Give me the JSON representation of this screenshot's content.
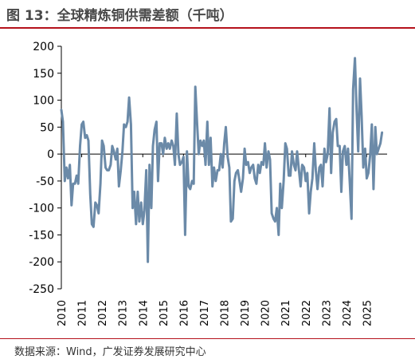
{
  "header": {
    "title": "图 13：全球精炼铜供需差额（千吨）"
  },
  "footer": {
    "source": "数据来源：Wind，广发证券发展研究中心"
  },
  "chart_data": {
    "type": "line",
    "title": "图 13：全球精炼铜供需差额（千吨）",
    "xlabel": "",
    "ylabel": "",
    "ylim": [
      -250,
      200
    ],
    "yticks": [
      200,
      150,
      100,
      50,
      0,
      -50,
      -100,
      -150,
      -200,
      -250
    ],
    "xlim": [
      2010,
      2026
    ],
    "xticks": [
      "2010",
      "2011",
      "2012",
      "2013",
      "2014",
      "2015",
      "2016",
      "2017",
      "2018",
      "2019",
      "2020",
      "2021",
      "2022",
      "2023",
      "2024",
      "2025"
    ],
    "grid": false,
    "legend": "none",
    "colors": {
      "line": "#6b8aa8",
      "axis": "#000000"
    },
    "series": [
      {
        "values": [
          [
            2010.0,
            82
          ],
          [
            2010.08,
            60
          ],
          [
            2010.17,
            -50
          ],
          [
            2010.25,
            -25
          ],
          [
            2010.33,
            -45
          ],
          [
            2010.42,
            -20
          ],
          [
            2010.5,
            -95
          ],
          [
            2010.58,
            -55
          ],
          [
            2010.67,
            -55
          ],
          [
            2010.75,
            -40
          ],
          [
            2010.83,
            -55
          ],
          [
            2010.92,
            15
          ],
          [
            2011.0,
            55
          ],
          [
            2011.08,
            60
          ],
          [
            2011.17,
            30
          ],
          [
            2011.25,
            35
          ],
          [
            2011.33,
            25
          ],
          [
            2011.42,
            -75
          ],
          [
            2011.5,
            -130
          ],
          [
            2011.58,
            -135
          ],
          [
            2011.67,
            -90
          ],
          [
            2011.75,
            -95
          ],
          [
            2011.83,
            -110
          ],
          [
            2011.92,
            -55
          ],
          [
            2012.0,
            25
          ],
          [
            2012.08,
            15
          ],
          [
            2012.17,
            -25
          ],
          [
            2012.25,
            -30
          ],
          [
            2012.33,
            -30
          ],
          [
            2012.42,
            -20
          ],
          [
            2012.5,
            15
          ],
          [
            2012.58,
            5
          ],
          [
            2012.67,
            -10
          ],
          [
            2012.75,
            10
          ],
          [
            2012.83,
            -60
          ],
          [
            2012.92,
            -30
          ],
          [
            2013.0,
            5
          ],
          [
            2013.08,
            55
          ],
          [
            2013.17,
            50
          ],
          [
            2013.25,
            60
          ],
          [
            2013.33,
            105
          ],
          [
            2013.42,
            55
          ],
          [
            2013.5,
            -100
          ],
          [
            2013.58,
            -70
          ],
          [
            2013.67,
            -130
          ],
          [
            2013.75,
            -70
          ],
          [
            2013.83,
            -125
          ],
          [
            2013.92,
            -90
          ],
          [
            2014.0,
            -130
          ],
          [
            2014.08,
            -105
          ],
          [
            2014.17,
            -30
          ],
          [
            2014.25,
            -200
          ],
          [
            2014.33,
            -20
          ],
          [
            2014.42,
            -100
          ],
          [
            2014.5,
            15
          ],
          [
            2014.58,
            45
          ],
          [
            2014.67,
            60
          ],
          [
            2014.75,
            -50
          ],
          [
            2014.83,
            20
          ],
          [
            2014.92,
            20
          ],
          [
            2015.0,
            0
          ],
          [
            2015.08,
            30
          ],
          [
            2015.17,
            10
          ],
          [
            2015.25,
            20
          ],
          [
            2015.33,
            10
          ],
          [
            2015.42,
            25
          ],
          [
            2015.5,
            15
          ],
          [
            2015.58,
            -20
          ],
          [
            2015.67,
            75
          ],
          [
            2015.75,
            0
          ],
          [
            2015.83,
            -20
          ],
          [
            2015.92,
            -15
          ],
          [
            2016.0,
            -5
          ],
          [
            2016.08,
            -150
          ],
          [
            2016.17,
            5
          ],
          [
            2016.25,
            -60
          ],
          [
            2016.33,
            -65
          ],
          [
            2016.42,
            -50
          ],
          [
            2016.5,
            -55
          ],
          [
            2016.58,
            125
          ],
          [
            2016.67,
            55
          ],
          [
            2016.75,
            0
          ],
          [
            2016.83,
            25
          ],
          [
            2016.92,
            15
          ],
          [
            2017.0,
            25
          ],
          [
            2017.08,
            -20
          ],
          [
            2017.17,
            60
          ],
          [
            2017.25,
            -20
          ],
          [
            2017.33,
            30
          ],
          [
            2017.42,
            -60
          ],
          [
            2017.5,
            -25
          ],
          [
            2017.58,
            -50
          ],
          [
            2017.67,
            -30
          ],
          [
            2017.75,
            -30
          ],
          [
            2017.83,
            0
          ],
          [
            2017.92,
            -25
          ],
          [
            2018.0,
            20
          ],
          [
            2018.08,
            50
          ],
          [
            2018.17,
            -5
          ],
          [
            2018.25,
            -25
          ],
          [
            2018.33,
            -125
          ],
          [
            2018.42,
            -120
          ],
          [
            2018.5,
            -50
          ],
          [
            2018.58,
            -35
          ],
          [
            2018.67,
            -30
          ],
          [
            2018.75,
            -50
          ],
          [
            2018.83,
            -70
          ],
          [
            2018.92,
            -45
          ],
          [
            2019.0,
            10
          ],
          [
            2019.08,
            -20
          ],
          [
            2019.17,
            -15
          ],
          [
            2019.25,
            -35
          ],
          [
            2019.33,
            -25
          ],
          [
            2019.42,
            -20
          ],
          [
            2019.5,
            -45
          ],
          [
            2019.58,
            -55
          ],
          [
            2019.67,
            -20
          ],
          [
            2019.75,
            -35
          ],
          [
            2019.83,
            -15
          ],
          [
            2019.92,
            -20
          ],
          [
            2020.0,
            20
          ],
          [
            2020.08,
            -25
          ],
          [
            2020.17,
            5
          ],
          [
            2020.25,
            -10
          ],
          [
            2020.33,
            -110
          ],
          [
            2020.42,
            -120
          ],
          [
            2020.5,
            -125
          ],
          [
            2020.58,
            -100
          ],
          [
            2020.67,
            -150
          ],
          [
            2020.75,
            -55
          ],
          [
            2020.83,
            -100
          ],
          [
            2020.92,
            -50
          ],
          [
            2021.0,
            20
          ],
          [
            2021.08,
            10
          ],
          [
            2021.17,
            -40
          ],
          [
            2021.25,
            -40
          ],
          [
            2021.33,
            5
          ],
          [
            2021.42,
            -20
          ],
          [
            2021.5,
            -30
          ],
          [
            2021.58,
            5
          ],
          [
            2021.67,
            -30
          ],
          [
            2021.75,
            -60
          ],
          [
            2021.83,
            -20
          ],
          [
            2021.92,
            -25
          ],
          [
            2022.0,
            -50
          ],
          [
            2022.08,
            -35
          ],
          [
            2022.17,
            -110
          ],
          [
            2022.25,
            -70
          ],
          [
            2022.33,
            -45
          ],
          [
            2022.42,
            20
          ],
          [
            2022.5,
            -30
          ],
          [
            2022.58,
            -65
          ],
          [
            2022.67,
            -25
          ],
          [
            2022.75,
            -20
          ],
          [
            2022.83,
            -60
          ],
          [
            2022.92,
            10
          ],
          [
            2023.0,
            -15
          ],
          [
            2023.08,
            0
          ],
          [
            2023.17,
            85
          ],
          [
            2023.25,
            -35
          ],
          [
            2023.33,
            40
          ],
          [
            2023.42,
            60
          ],
          [
            2023.5,
            65
          ],
          [
            2023.58,
            15
          ],
          [
            2023.67,
            15
          ],
          [
            2023.75,
            -70
          ],
          [
            2023.83,
            5
          ],
          [
            2023.92,
            15
          ],
          [
            2024.0,
            -20
          ],
          [
            2024.08,
            10
          ],
          [
            2024.17,
            -55
          ],
          [
            2024.25,
            -120
          ],
          [
            2024.33,
            120
          ],
          [
            2024.42,
            178
          ],
          [
            2024.5,
            80
          ],
          [
            2024.58,
            5
          ],
          [
            2024.67,
            140
          ],
          [
            2024.75,
            70
          ],
          [
            2024.83,
            -25
          ],
          [
            2024.92,
            10
          ],
          [
            2025.0,
            -45
          ],
          [
            2025.08,
            -35
          ],
          [
            2025.17,
            0
          ],
          [
            2025.25,
            55
          ],
          [
            2025.33,
            -65
          ],
          [
            2025.42,
            50
          ],
          [
            2025.5,
            0
          ],
          [
            2025.58,
            10
          ],
          [
            2025.67,
            20
          ],
          [
            2025.75,
            40
          ]
        ]
      }
    ]
  }
}
